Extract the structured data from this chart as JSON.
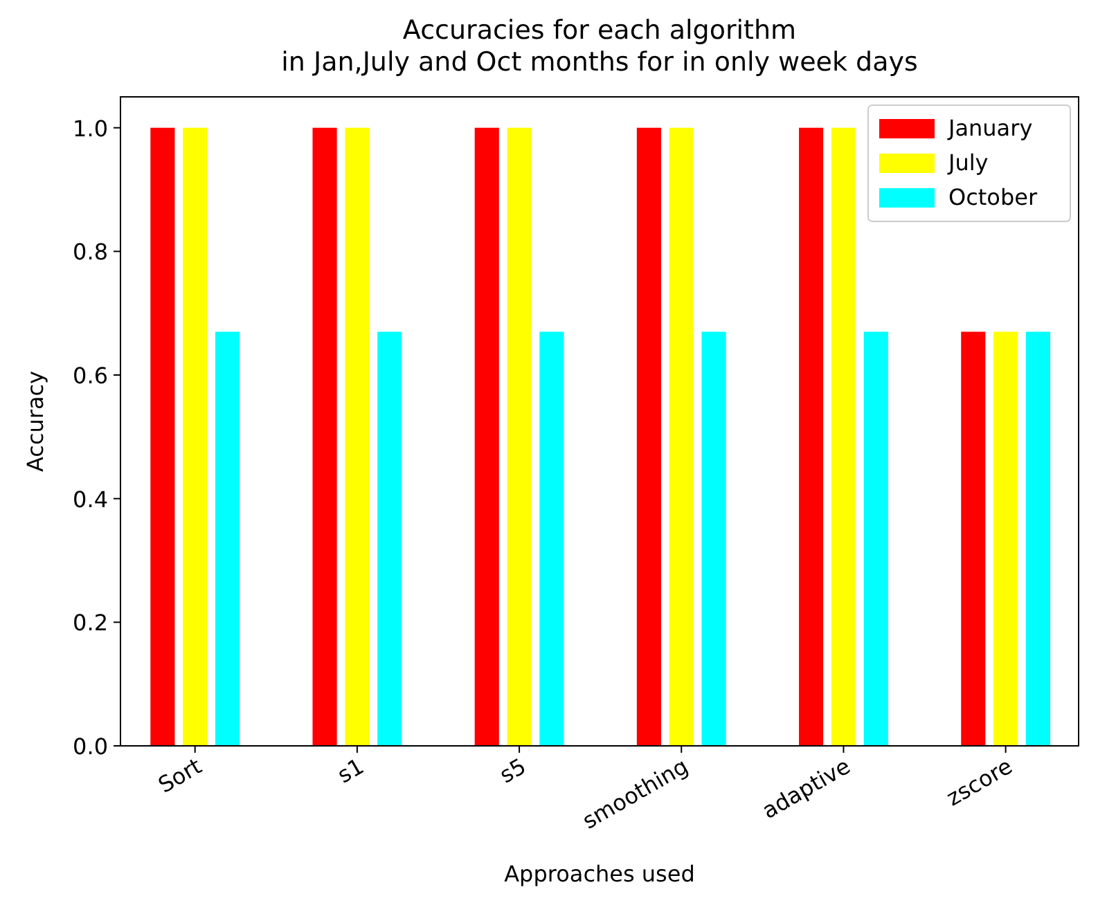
{
  "chart_data": {
    "type": "bar",
    "title": "Accuracies for each  algorithm\nin Jan,July and Oct months for in only week days",
    "xlabel": "Approaches used",
    "ylabel": "Accuracy",
    "categories": [
      "Sort",
      "s1",
      "s5",
      "smoothing",
      "adaptive",
      "zscore"
    ],
    "series": [
      {
        "name": "January",
        "color": "#ff0000",
        "values": [
          1.0,
          1.0,
          1.0,
          1.0,
          1.0,
          0.67
        ]
      },
      {
        "name": "July",
        "color": "#ffff00",
        "values": [
          1.0,
          1.0,
          1.0,
          1.0,
          1.0,
          0.67
        ]
      },
      {
        "name": "October",
        "color": "#00ffff",
        "values": [
          0.67,
          0.67,
          0.67,
          0.67,
          0.67,
          0.67
        ]
      }
    ],
    "ylim": [
      0,
      1.05
    ],
    "yticks": [
      {
        "value": 0,
        "label": "0.0"
      },
      {
        "value": 0.2,
        "label": "0.2"
      },
      {
        "value": 0.4,
        "label": "0.4"
      },
      {
        "value": 0.6,
        "label": "0.6"
      },
      {
        "value": 0.8,
        "label": "0.8"
      },
      {
        "value": 1,
        "label": "1.0"
      }
    ],
    "legend": "top right",
    "grid": false
  }
}
